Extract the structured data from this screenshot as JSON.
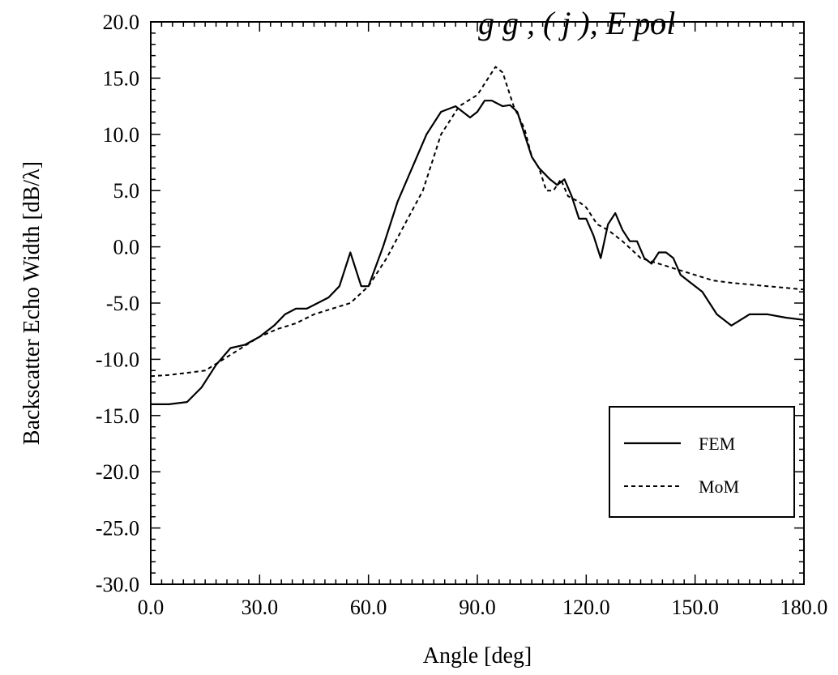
{
  "chart_data": {
    "type": "line",
    "title_fragment": "g g , ( j ), E pol",
    "xlabel": "Angle [deg]",
    "ylabel": "Backscatter Echo Width [dB/λ]",
    "xlim": [
      0,
      180
    ],
    "ylim": [
      -30,
      20
    ],
    "x_ticks": [
      "0.0",
      "30.0",
      "60.0",
      "90.0",
      "120.0",
      "150.0",
      "180.0"
    ],
    "y_ticks": [
      "20.0",
      "15.0",
      "10.0",
      "5.0",
      "0.0",
      "-5.0",
      "-10.0",
      "-15.0",
      "-20.0",
      "-25.0",
      "-30.0"
    ],
    "grid": false,
    "legend_position": "lower-right",
    "series": [
      {
        "name": "FEM",
        "style": "solid",
        "x": [
          0,
          5,
          10,
          14,
          18,
          22,
          26,
          30,
          34,
          37,
          40,
          43,
          46,
          49,
          52,
          55,
          58,
          60,
          64,
          68,
          72,
          76,
          80,
          84,
          88,
          90,
          92,
          94,
          97,
          99,
          101,
          103,
          105,
          107,
          110,
          112,
          114,
          116,
          118,
          120,
          122,
          124,
          126,
          128,
          130,
          132,
          134,
          136,
          138,
          140,
          142,
          144,
          146,
          148,
          152,
          156,
          160,
          165,
          170,
          175,
          180
        ],
        "y": [
          -14,
          -14,
          -13.8,
          -12.5,
          -10.5,
          -9,
          -8.7,
          -8,
          -7,
          -6,
          -5.5,
          -5.5,
          -5,
          -4.5,
          -3.5,
          -0.5,
          -3.5,
          -3.5,
          0,
          4,
          7,
          10,
          12,
          12.5,
          11.5,
          12,
          13,
          13,
          12.5,
          12.6,
          12,
          10,
          8,
          7,
          6,
          5.5,
          6,
          4.5,
          2.5,
          2.5,
          1,
          -1,
          2,
          3,
          1.5,
          0.5,
          0.5,
          -1,
          -1.5,
          -0.5,
          -0.5,
          -1,
          -2.5,
          -3,
          -4,
          -6,
          -7,
          -6,
          -6,
          -6.3,
          -6.5
        ]
      },
      {
        "name": "MoM",
        "style": "dashed",
        "x": [
          0,
          5,
          10,
          15,
          20,
          25,
          30,
          35,
          40,
          45,
          50,
          55,
          60,
          65,
          70,
          75,
          80,
          85,
          90,
          93,
          95,
          97,
          100,
          103,
          105,
          107,
          109,
          111,
          113,
          115,
          118,
          120,
          123,
          126,
          130,
          135,
          140,
          145,
          150,
          155,
          160,
          170,
          180
        ],
        "y": [
          -11.5,
          -11.4,
          -11.2,
          -11,
          -10,
          -9,
          -8,
          -7.3,
          -6.8,
          -6,
          -5.5,
          -5,
          -3.5,
          -1,
          2,
          5,
          10,
          12.5,
          13.5,
          15,
          16,
          15.5,
          12.5,
          10.5,
          8,
          7,
          5,
          5,
          6,
          4.5,
          4,
          3.5,
          2,
          1.5,
          0.5,
          -1,
          -1.5,
          -2,
          -2.5,
          -3,
          -3.2,
          -3.5,
          -3.8
        ]
      }
    ]
  }
}
